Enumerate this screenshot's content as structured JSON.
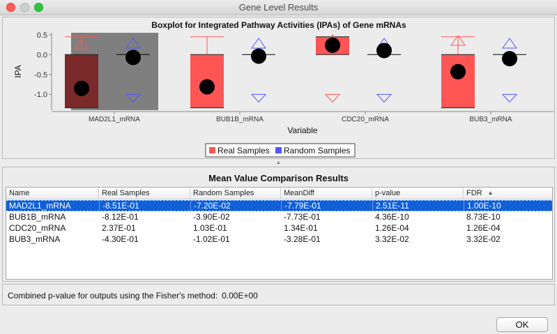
{
  "window": {
    "title": "Gene Level Results"
  },
  "chart_data": {
    "type": "boxplot",
    "title": "Boxplot for Integrated Pathway Activities (IPAs) of Gene mRNAs",
    "xlabel": "Variable",
    "ylabel": "IPA",
    "ylim": [
      -1.4,
      0.55
    ],
    "yticks": [
      0.5,
      0.0,
      -0.5,
      -1.0
    ],
    "ytick_labels": [
      "0.5",
      "0.0",
      "-0.5",
      "-1.0"
    ],
    "categories": [
      "MAD2L1_mRNA",
      "BUB1B_mRNA",
      "CDC20_mRNA",
      "BUB3_mRNA"
    ],
    "highlighted_category": "MAD2L1_mRNA",
    "legend_position": "bottom-center",
    "series": [
      {
        "name": "Real Samples",
        "color": "#ff5555",
        "boxes": [
          {
            "q1": -1.34,
            "median": 0.0,
            "q3": 0.0,
            "whisker_high": 0.45,
            "mean": -0.851,
            "outlier_high": 0.24,
            "outlier_low": null
          },
          {
            "q1": -1.34,
            "median": 0.0,
            "q3": 0.0,
            "whisker_high": 0.45,
            "mean": -0.812,
            "outlier_high": null,
            "outlier_low": null
          },
          {
            "q1": 0.0,
            "median": 0.45,
            "q3": 0.45,
            "whisker_high": null,
            "mean": 0.237,
            "outlier_high": 0.36,
            "outlier_low": -1.09
          },
          {
            "q1": -1.34,
            "median": 0.0,
            "q3": 0.0,
            "whisker_high": 0.45,
            "mean": -0.43,
            "outlier_high": 0.34,
            "outlier_low": null
          }
        ]
      },
      {
        "name": "Random Samples",
        "color": "#5555ff",
        "boxes": [
          {
            "median": 0.0,
            "mean": -0.072,
            "outlier_high": 0.27,
            "outlier_low": -1.09
          },
          {
            "median": 0.0,
            "mean": -0.039,
            "outlier_high": 0.27,
            "outlier_low": -1.09
          },
          {
            "median": 0.0,
            "mean": 0.103,
            "outlier_high": 0.27,
            "outlier_low": -1.09
          },
          {
            "median": 0.0,
            "mean": -0.102,
            "outlier_high": 0.27,
            "outlier_low": -1.09
          }
        ]
      }
    ]
  },
  "results": {
    "title": "Mean Value Comparison Results",
    "columns": [
      "Name",
      "Real Samples",
      "Random Samples",
      "MeanDiff",
      "p-value",
      "FDR"
    ],
    "sort_column": "FDR",
    "rows": [
      {
        "name": "MAD2L1_mRNA",
        "real": "-8.51E-01",
        "random": "-7.20E-02",
        "meandiff": "-7.79E-01",
        "pvalue": "2.51E-11",
        "fdr": "1.00E-10",
        "selected": true
      },
      {
        "name": "BUB1B_mRNA",
        "real": "-8.12E-01",
        "random": "-3.90E-02",
        "meandiff": "-7.73E-01",
        "pvalue": "4.36E-10",
        "fdr": "8.73E-10",
        "selected": false
      },
      {
        "name": "CDC20_mRNA",
        "real": "2.37E-01",
        "random": "1.03E-01",
        "meandiff": "1.34E-01",
        "pvalue": "1.26E-04",
        "fdr": "1.26E-04",
        "selected": false
      },
      {
        "name": "BUB3_mRNA",
        "real": "-4.30E-01",
        "random": "-1.02E-01",
        "meandiff": "-3.28E-01",
        "pvalue": "3.32E-02",
        "fdr": "3.32E-02",
        "selected": false
      }
    ]
  },
  "fisher": {
    "label": "Combined p-value for outputs using the Fisher's method:",
    "value": "0.00E+00"
  },
  "buttons": {
    "ok": "OK"
  }
}
